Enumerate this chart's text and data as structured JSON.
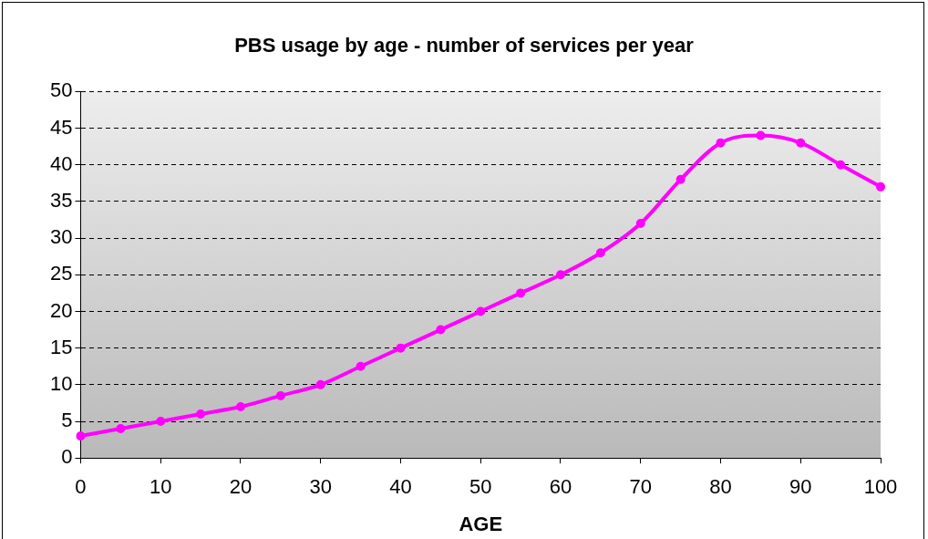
{
  "chart_data": {
    "type": "line",
    "title": "PBS usage by age - number of services per year",
    "xlabel": "AGE",
    "x": [
      0,
      5,
      10,
      15,
      20,
      25,
      30,
      35,
      40,
      45,
      50,
      55,
      60,
      65,
      70,
      75,
      80,
      85,
      90,
      95,
      100
    ],
    "series": [
      {
        "color": "#ff00ff",
        "values": [
          3,
          4,
          5,
          6,
          7,
          8.5,
          10,
          12.5,
          15,
          17.5,
          20,
          22.5,
          25,
          28,
          32,
          38,
          43,
          44,
          43,
          40,
          37
        ]
      }
    ],
    "xlim": [
      0,
      100
    ],
    "xticks": [
      0,
      10,
      20,
      30,
      40,
      50,
      60,
      70,
      80,
      90,
      100
    ],
    "ylim": [
      0,
      50
    ],
    "yticks": [
      0,
      5,
      10,
      15,
      20,
      25,
      30,
      35,
      40,
      45,
      50
    ],
    "grid": "y",
    "legend": false,
    "marker": "circle",
    "line_style": "solid"
  }
}
